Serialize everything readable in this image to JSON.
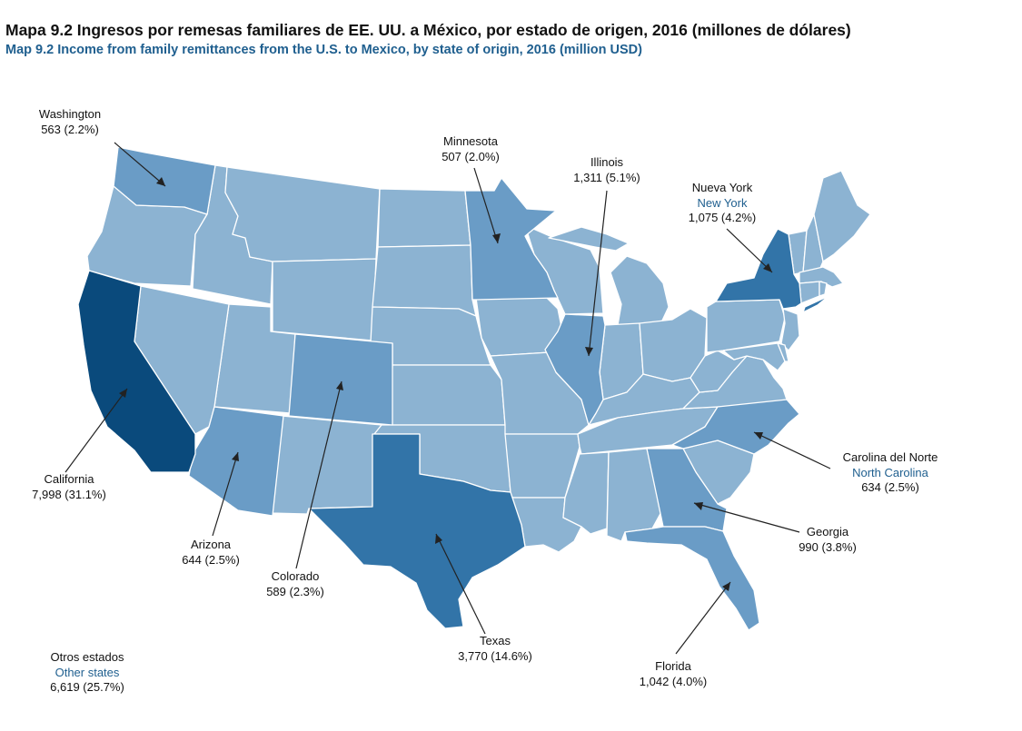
{
  "title": {
    "es": "Mapa 9.2 Ingresos por remesas familiares de EE. UU. a México, por estado de origen, 2016 (millones de dólares)",
    "en": "Map 9.2 Income from family remittances from the U.S. to Mexico, by state of origin, 2016 (million USD)"
  },
  "colors": {
    "top": "#0a4a7c",
    "high": "#3274a8",
    "mid": "#6a9cc6",
    "base": "#8cb3d2",
    "border": "#ffffff",
    "leader": "#222222"
  },
  "highlighted_states": [
    {
      "id": "washington",
      "name": "Washington",
      "name_en": "",
      "value": "563 (2.2%)"
    },
    {
      "id": "minnesota",
      "name": "Minnesota",
      "name_en": "",
      "value": "507 (2.0%)"
    },
    {
      "id": "illinois",
      "name": "Illinois",
      "name_en": "",
      "value": "1,311 (5.1%)"
    },
    {
      "id": "new-york",
      "name": "Nueva York",
      "name_en": "New York",
      "value": "1,075 (4.2%)"
    },
    {
      "id": "north-carolina",
      "name": "Carolina del Norte",
      "name_en": "North Carolina",
      "value": "634 (2.5%)"
    },
    {
      "id": "georgia",
      "name": "Georgia",
      "name_en": "",
      "value": "990 (3.8%)"
    },
    {
      "id": "florida",
      "name": "Florida",
      "name_en": "",
      "value": "1,042 (4.0%)"
    },
    {
      "id": "texas",
      "name": "Texas",
      "name_en": "",
      "value": "3,770 (14.6%)"
    },
    {
      "id": "colorado",
      "name": "Colorado",
      "name_en": "",
      "value": "589 (2.3%)"
    },
    {
      "id": "arizona",
      "name": "Arizona",
      "name_en": "",
      "value": "644 (2.5%)"
    },
    {
      "id": "california",
      "name": "California",
      "name_en": "",
      "value": "7,998 (31.1%)"
    }
  ],
  "other_states": {
    "name": "Otros estados",
    "name_en": "Other states",
    "value": "6,619 (25.7%)"
  }
}
